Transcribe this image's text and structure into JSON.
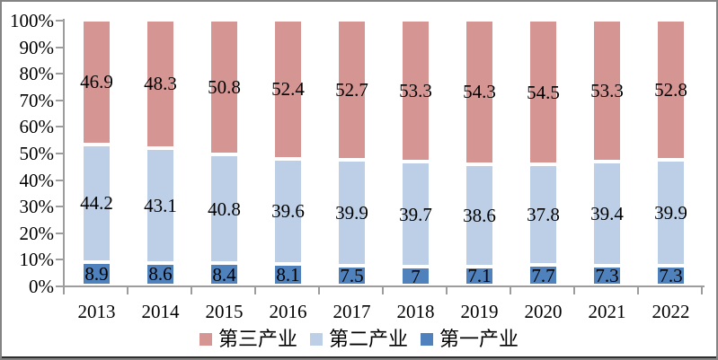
{
  "chart_data": {
    "type": "bar",
    "variant": "stacked-100-percent",
    "title": "",
    "xlabel": "",
    "ylabel": "",
    "categories": [
      "2013",
      "2014",
      "2015",
      "2016",
      "2017",
      "2018",
      "2019",
      "2020",
      "2021",
      "2022"
    ],
    "series": [
      {
        "name": "第一产业",
        "color": "#4F81BD",
        "values": [
          8.9,
          8.6,
          8.4,
          8.1,
          7.5,
          7,
          7.1,
          7.7,
          7.3,
          7.3
        ]
      },
      {
        "name": "第二产业",
        "color": "#BDCFE6",
        "values": [
          44.2,
          43.1,
          40.8,
          39.6,
          39.9,
          39.7,
          38.6,
          37.8,
          39.4,
          39.9
        ]
      },
      {
        "name": "第三产业",
        "color": "#D59593",
        "values": [
          46.9,
          48.3,
          50.8,
          52.4,
          52.7,
          53.3,
          54.3,
          54.5,
          53.3,
          52.8
        ]
      }
    ],
    "y_axis": {
      "min": 0,
      "max": 100,
      "ticks": [
        "0%",
        "10%",
        "20%",
        "30%",
        "40%",
        "50%",
        "60%",
        "70%",
        "80%",
        "90%",
        "100%"
      ]
    },
    "grid": false,
    "data_labels": true,
    "legend": {
      "position": "bottom",
      "order": [
        "第三产业",
        "第二产业",
        "第一产业"
      ]
    },
    "colors": {
      "axis": "#9d9d9d",
      "border": "#848484",
      "label_text": "#000000",
      "segment_border": "#ffffff",
      "background": "#ffffff"
    }
  }
}
